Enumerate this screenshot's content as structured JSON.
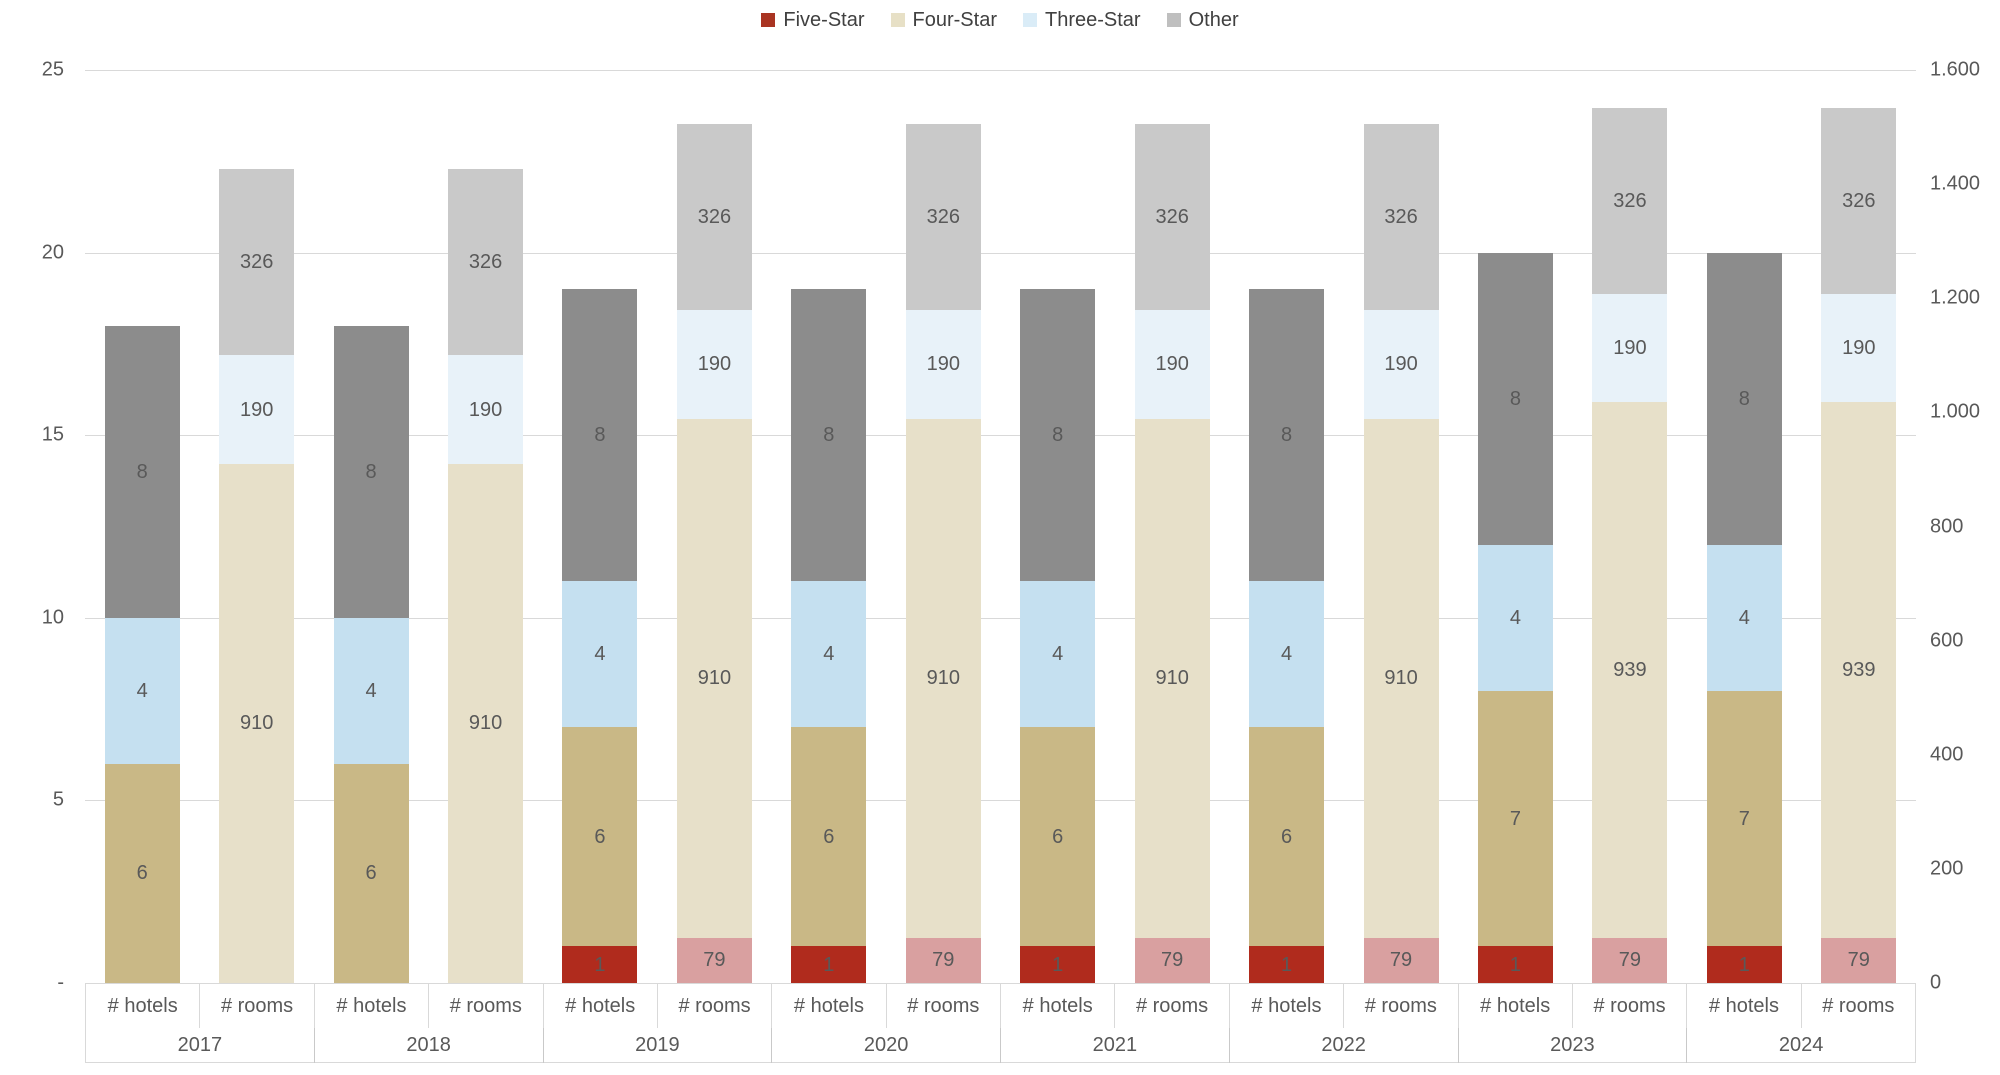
{
  "legend": {
    "items": [
      {
        "key": "five_star",
        "label": "Five-Star",
        "color": "#a93422"
      },
      {
        "key": "four_star",
        "label": "Four-Star",
        "color": "#e7e0c6"
      },
      {
        "key": "three_star",
        "label": "Three-Star",
        "color": "#daecf7"
      },
      {
        "key": "other",
        "label": "Other",
        "color": "#bfbfbf"
      }
    ]
  },
  "left_axis": {
    "tick_labels": [
      "25",
      "20",
      "15",
      "10",
      "5",
      "-"
    ],
    "min": 0,
    "max": 25
  },
  "right_axis": {
    "tick_labels": [
      "1.600",
      "1.400",
      "1.200",
      "1.000",
      "800",
      "600",
      "400",
      "200",
      "0"
    ],
    "min": 0,
    "max": 1600
  },
  "x_axis": {
    "pair_labels": [
      "# hotels",
      "# rooms"
    ],
    "years": [
      "2017",
      "2018",
      "2019",
      "2020",
      "2021",
      "2022",
      "2023",
      "2024"
    ]
  },
  "colors": {
    "segment": {
      "Five-Star": {
        "hotels": "#b02b1d",
        "rooms": "#d9a0a0"
      },
      "Four-Star": {
        "hotels": "#c9b886",
        "rooms": "#e7e0c9"
      },
      "Three-Star": {
        "hotels": "#c5e0f0",
        "rooms": "#e8f2f9"
      },
      "Other": {
        "hotels": "#8c8c8c",
        "rooms": "#c9c9c9"
      }
    },
    "gridline": "#d9d9d9",
    "text": "#595959"
  },
  "chart_data": {
    "type": "bar",
    "subtype": "stacked-dual-axis",
    "grid": true,
    "legend_position": "top",
    "categories": [
      "2017",
      "2018",
      "2019",
      "2020",
      "2021",
      "2022",
      "2023",
      "2024"
    ],
    "groups_per_category": [
      "# hotels",
      "# rooms"
    ],
    "left_axis_label_for": "# hotels",
    "right_axis_label_for": "# rooms",
    "left_ylim": [
      0,
      25
    ],
    "right_ylim": [
      0,
      1600
    ],
    "stack_order_bottom_to_top": [
      "Five-Star",
      "Four-Star",
      "Three-Star",
      "Other"
    ],
    "series_hotels": [
      {
        "name": "Five-Star",
        "values": [
          0,
          0,
          1,
          1,
          1,
          1,
          1,
          1
        ]
      },
      {
        "name": "Four-Star",
        "values": [
          6,
          6,
          6,
          6,
          6,
          6,
          7,
          7
        ]
      },
      {
        "name": "Three-Star",
        "values": [
          4,
          4,
          4,
          4,
          4,
          4,
          4,
          4
        ]
      },
      {
        "name": "Other",
        "values": [
          8,
          8,
          8,
          8,
          8,
          8,
          8,
          8
        ]
      }
    ],
    "series_rooms": [
      {
        "name": "Five-Star",
        "values": [
          0,
          0,
          79,
          79,
          79,
          79,
          79,
          79
        ]
      },
      {
        "name": "Four-Star",
        "values": [
          910,
          910,
          910,
          910,
          910,
          910,
          939,
          939
        ]
      },
      {
        "name": "Three-Star",
        "values": [
          190,
          190,
          190,
          190,
          190,
          190,
          190,
          190
        ]
      },
      {
        "name": "Other",
        "values": [
          326,
          326,
          326,
          326,
          326,
          326,
          326,
          326
        ]
      }
    ],
    "hotel_totals": [
      18,
      18,
      19,
      19,
      19,
      19,
      20,
      20
    ],
    "room_totals": [
      1426,
      1426,
      1505,
      1505,
      1505,
      1505,
      1534,
      1534
    ]
  }
}
